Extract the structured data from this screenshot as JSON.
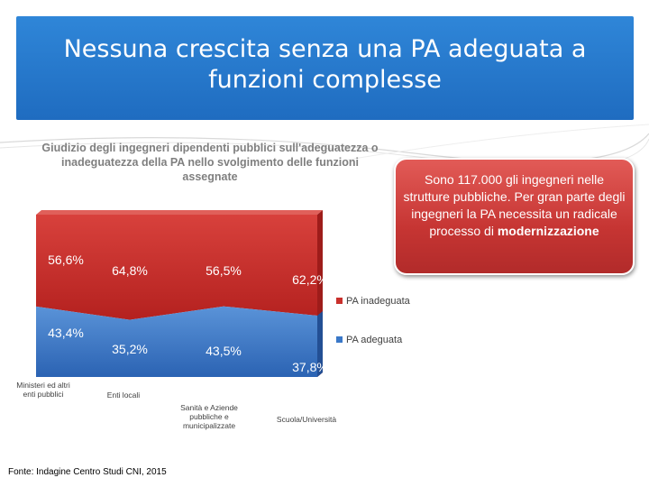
{
  "slide": {
    "title_line1": "Nessuna crescita senza una PA adeguata a",
    "title_line2": "funzioni complesse",
    "source": "Fonte: Indagine Centro Studi CNI, 2015"
  },
  "callout": {
    "text": "Sono 117.000 gli ingegneri nelle strutture pubbliche. Per gran parte degli ingegneri la PA necessita un radicale processo di",
    "emphasis": "modernizzazione"
  },
  "colors": {
    "header": "#2478cc",
    "inadeguata": "#c9302c",
    "adeguata": "#3a78c8",
    "callout": "#c63533"
  },
  "chart_data": {
    "type": "area",
    "stacked": true,
    "percent": true,
    "title": "Giudizio degli ingegneri dipendenti pubblici sull'adeguatezza o inadeguatezza della PA nello svolgimento delle funzioni assegnate",
    "categories": [
      "Ministeri ed altri enti pubblici",
      "Enti locali",
      "Sanità e Aziende pubbliche e municipalizzate",
      "Scuola/Università"
    ],
    "series": [
      {
        "name": "PA adeguata",
        "values": [
          43.4,
          35.2,
          43.5,
          37.8
        ],
        "labels": [
          "43,4%",
          "35,2%",
          "43,5%",
          "37,8%"
        ]
      },
      {
        "name": "PA inadeguata",
        "values": [
          56.6,
          64.8,
          56.5,
          62.2
        ],
        "labels": [
          "56,6%",
          "64,8%",
          "56,5%",
          "62,2%"
        ]
      }
    ],
    "ylim": [
      0,
      100
    ],
    "legend": "right"
  }
}
